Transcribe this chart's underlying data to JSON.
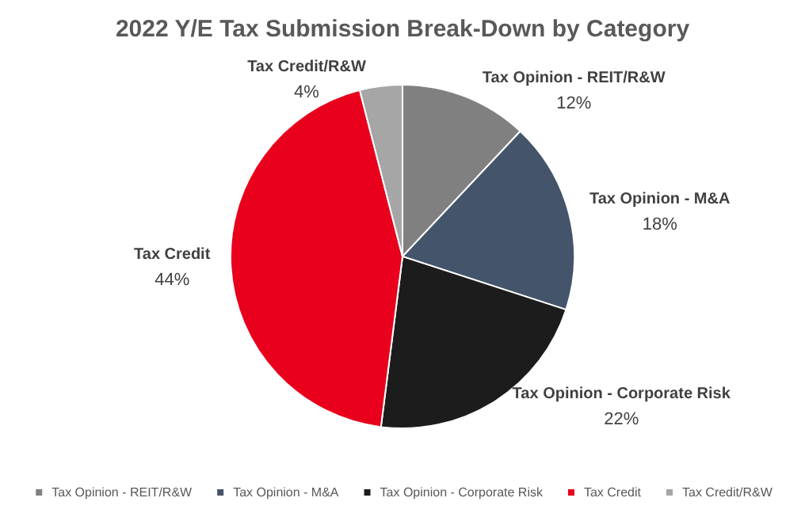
{
  "chart_data": {
    "type": "pie",
    "title": "2022 Y/E Tax Submission Break-Down by Category",
    "categories": [
      "Tax Opinion - REIT/R&W",
      "Tax Opinion - M&A",
      "Tax Opinion - Corporate Risk",
      "Tax Credit",
      "Tax Credit/R&W"
    ],
    "values": [
      12,
      18,
      22,
      44,
      4
    ],
    "colors": [
      "#808080",
      "#44546a",
      "#1c1c1c",
      "#e8001c",
      "#a6a6a6"
    ],
    "value_labels": [
      "12%",
      "18%",
      "22%",
      "44%",
      "4%"
    ],
    "legend": "bottom"
  }
}
